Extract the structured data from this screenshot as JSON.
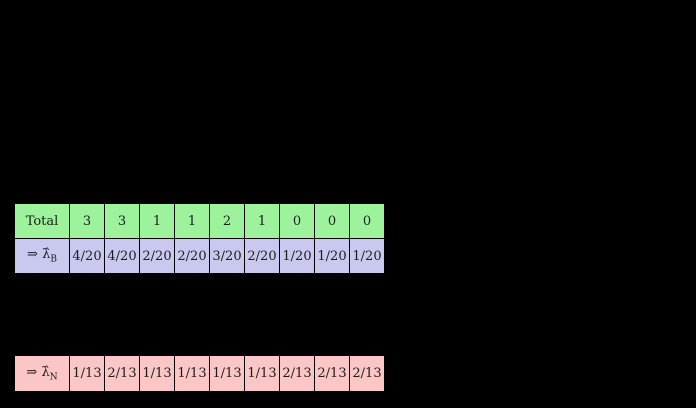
{
  "slide": {
    "background": "#000000"
  },
  "colors": {
    "total_row_bg": "#9cf39c",
    "lambda_b_row_bg": "#c9c9f0",
    "lambda_n_row_bg": "#fbc6c6",
    "cell_border": "#000000",
    "cell_text": "#1c1c1c"
  },
  "tables": {
    "bernoulli": {
      "total_label": "Total",
      "totals": [
        "3",
        "3",
        "1",
        "1",
        "2",
        "1",
        "0",
        "0",
        "0"
      ],
      "estimate_arrow": "⇒",
      "estimate_symbol": "λ̂",
      "estimate_subscript": "B",
      "estimates": [
        "4/20",
        "4/20",
        "2/20",
        "2/20",
        "3/20",
        "2/20",
        "1/20",
        "1/20",
        "1/20"
      ]
    },
    "smoothed": {
      "estimate_arrow": "⇒",
      "estimate_symbol": "λ̂",
      "estimate_subscript": "N",
      "estimates": [
        "1/13",
        "2/13",
        "1/13",
        "1/13",
        "1/13",
        "1/13",
        "2/13",
        "2/13",
        "2/13"
      ]
    }
  }
}
